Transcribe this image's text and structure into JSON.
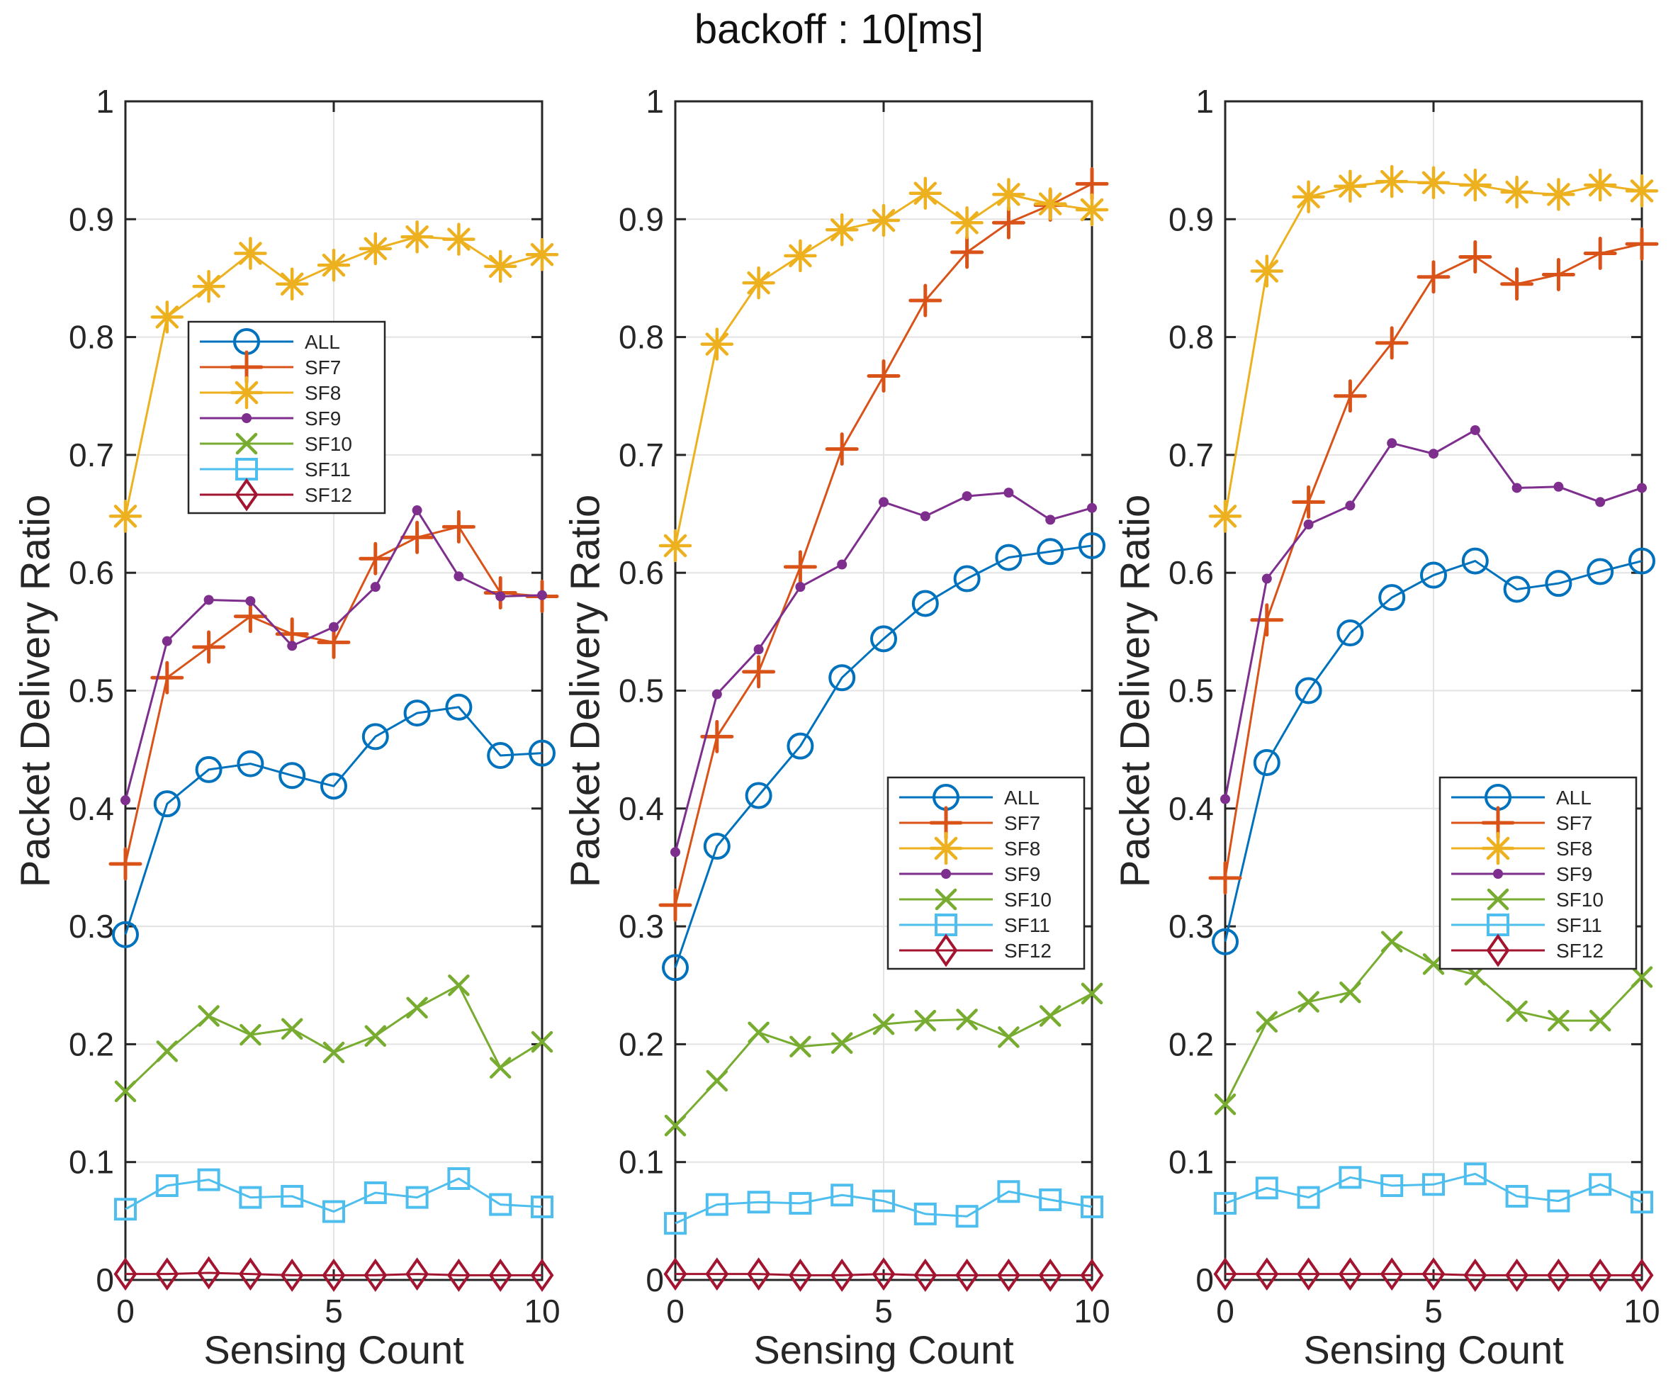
{
  "title": "backoff : 10[ms]",
  "colors": {
    "ALL": "#0072BD",
    "SF7": "#D95319",
    "SF8": "#EDB120",
    "SF9": "#7E2F8E",
    "SF10": "#77AC30",
    "SF11": "#4DBEEE",
    "SF12": "#A2142F",
    "grid": "#e3e3e3",
    "axis": "#262626"
  },
  "axes": {
    "xlabel": "Sensing Count",
    "ylabel": "Packet Delivery Ratio",
    "xlim": [
      0,
      10
    ],
    "ylim": [
      0,
      1
    ],
    "xticks": [
      0,
      5,
      10
    ],
    "yticks": [
      0,
      0.1,
      0.2,
      0.3,
      0.4,
      0.5,
      0.6,
      0.7,
      0.8,
      0.9,
      1
    ],
    "grid": true
  },
  "legend_labels": [
    "ALL",
    "SF7",
    "SF8",
    "SF9",
    "SF10",
    "SF11",
    "SF12"
  ],
  "chart_data": [
    {
      "type": "line",
      "position": "left",
      "legend_position": "upper-left",
      "x": [
        0,
        1,
        2,
        3,
        4,
        5,
        6,
        7,
        8,
        9,
        10
      ],
      "xlabel": "Sensing Count",
      "ylabel": "Packet Delivery Ratio",
      "ylim": [
        0,
        1
      ],
      "series": [
        {
          "name": "ALL",
          "marker": "circle",
          "values": [
            0.293,
            0.404,
            0.433,
            0.438,
            0.428,
            0.419,
            0.461,
            0.481,
            0.486,
            0.445,
            0.447
          ]
        },
        {
          "name": "SF7",
          "marker": "plus",
          "values": [
            0.353,
            0.511,
            0.537,
            0.563,
            0.548,
            0.541,
            0.612,
            0.63,
            0.639,
            0.583,
            0.58
          ]
        },
        {
          "name": "SF8",
          "marker": "asterisk",
          "values": [
            0.648,
            0.817,
            0.843,
            0.871,
            0.845,
            0.861,
            0.875,
            0.885,
            0.883,
            0.86,
            0.87
          ]
        },
        {
          "name": "SF9",
          "marker": "point",
          "values": [
            0.407,
            0.542,
            0.577,
            0.576,
            0.538,
            0.554,
            0.588,
            0.653,
            0.597,
            0.58,
            0.581
          ]
        },
        {
          "name": "SF10",
          "marker": "x",
          "values": [
            0.16,
            0.194,
            0.224,
            0.208,
            0.213,
            0.193,
            0.207,
            0.231,
            0.25,
            0.18,
            0.202
          ]
        },
        {
          "name": "SF11",
          "marker": "square",
          "values": [
            0.06,
            0.08,
            0.085,
            0.07,
            0.071,
            0.058,
            0.074,
            0.07,
            0.086,
            0.064,
            0.062
          ]
        },
        {
          "name": "SF12",
          "marker": "diamond",
          "values": [
            0.005,
            0.005,
            0.006,
            0.005,
            0.004,
            0.004,
            0.004,
            0.005,
            0.004,
            0.004,
            0.004
          ]
        }
      ]
    },
    {
      "type": "line",
      "position": "middle",
      "legend_position": "lower-right",
      "x": [
        0,
        1,
        2,
        3,
        4,
        5,
        6,
        7,
        8,
        9,
        10
      ],
      "xlabel": "Sensing Count",
      "ylabel": "Packet Delivery Ratio",
      "ylim": [
        0,
        1
      ],
      "series": [
        {
          "name": "ALL",
          "marker": "circle",
          "values": [
            0.265,
            0.368,
            0.411,
            0.453,
            0.511,
            0.544,
            0.574,
            0.595,
            0.613,
            0.618,
            0.623
          ]
        },
        {
          "name": "SF7",
          "marker": "plus",
          "values": [
            0.318,
            0.461,
            0.516,
            0.605,
            0.705,
            0.767,
            0.831,
            0.872,
            0.897,
            0.912,
            0.93
          ]
        },
        {
          "name": "SF8",
          "marker": "asterisk",
          "values": [
            0.623,
            0.794,
            0.846,
            0.869,
            0.891,
            0.899,
            0.922,
            0.897,
            0.921,
            0.913,
            0.908
          ]
        },
        {
          "name": "SF9",
          "marker": "point",
          "values": [
            0.363,
            0.497,
            0.535,
            0.588,
            0.607,
            0.66,
            0.648,
            0.665,
            0.668,
            0.645,
            0.655
          ]
        },
        {
          "name": "SF10",
          "marker": "x",
          "values": [
            0.131,
            0.169,
            0.21,
            0.198,
            0.201,
            0.217,
            0.22,
            0.221,
            0.206,
            0.224,
            0.243
          ]
        },
        {
          "name": "SF11",
          "marker": "square",
          "values": [
            0.048,
            0.064,
            0.066,
            0.065,
            0.072,
            0.067,
            0.056,
            0.054,
            0.075,
            0.068,
            0.062
          ]
        },
        {
          "name": "SF12",
          "marker": "diamond",
          "values": [
            0.005,
            0.005,
            0.005,
            0.004,
            0.004,
            0.005,
            0.004,
            0.004,
            0.004,
            0.004,
            0.004
          ]
        }
      ]
    },
    {
      "type": "line",
      "position": "right",
      "legend_position": "lower-right",
      "x": [
        0,
        1,
        2,
        3,
        4,
        5,
        6,
        7,
        8,
        9,
        10
      ],
      "xlabel": "Sensing Count",
      "ylabel": "Packet Delivery Ratio",
      "ylim": [
        0,
        1
      ],
      "series": [
        {
          "name": "ALL",
          "marker": "circle",
          "values": [
            0.287,
            0.439,
            0.5,
            0.549,
            0.579,
            0.598,
            0.61,
            0.586,
            0.591,
            0.601,
            0.61
          ]
        },
        {
          "name": "SF7",
          "marker": "plus",
          "values": [
            0.341,
            0.56,
            0.66,
            0.75,
            0.795,
            0.851,
            0.868,
            0.845,
            0.853,
            0.871,
            0.879
          ]
        },
        {
          "name": "SF8",
          "marker": "asterisk",
          "values": [
            0.648,
            0.856,
            0.919,
            0.928,
            0.932,
            0.931,
            0.929,
            0.923,
            0.921,
            0.929,
            0.924
          ]
        },
        {
          "name": "SF9",
          "marker": "point",
          "values": [
            0.408,
            0.595,
            0.641,
            0.657,
            0.71,
            0.701,
            0.721,
            0.672,
            0.673,
            0.66,
            0.672
          ]
        },
        {
          "name": "SF10",
          "marker": "x",
          "values": [
            0.149,
            0.219,
            0.236,
            0.244,
            0.287,
            0.268,
            0.259,
            0.228,
            0.22,
            0.22,
            0.257
          ]
        },
        {
          "name": "SF11",
          "marker": "square",
          "values": [
            0.065,
            0.078,
            0.07,
            0.087,
            0.08,
            0.081,
            0.09,
            0.071,
            0.067,
            0.081,
            0.066
          ]
        },
        {
          "name": "SF12",
          "marker": "diamond",
          "values": [
            0.005,
            0.005,
            0.005,
            0.005,
            0.005,
            0.005,
            0.004,
            0.004,
            0.004,
            0.004,
            0.004
          ]
        }
      ]
    }
  ]
}
